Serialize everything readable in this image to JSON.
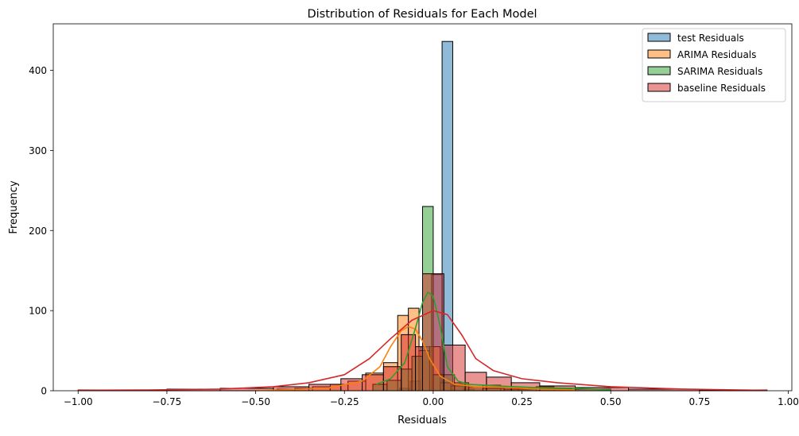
{
  "chart_data": {
    "type": "bar",
    "title": "Distribution of Residuals for Each Model",
    "xlabel": "Residuals",
    "ylabel": "Frequency",
    "xlim": [
      -1.07,
      1.01
    ],
    "ylim": [
      0,
      458
    ],
    "xticks": [
      -1.0,
      -0.75,
      -0.5,
      -0.25,
      0.0,
      0.25,
      0.5,
      0.75,
      1.0
    ],
    "xtick_labels": [
      "−1.00",
      "−0.75",
      "−0.50",
      "−0.25",
      "0.00",
      "0.25",
      "0.50",
      "0.75",
      "1.00"
    ],
    "yticks": [
      0,
      100,
      200,
      300,
      400
    ],
    "ytick_labels": [
      "0",
      "100",
      "200",
      "300",
      "400"
    ],
    "grid": false,
    "legend_position": "top-right",
    "series": [
      {
        "name": "test Residuals",
        "color": "#1f77b4",
        "bins": [
          [
            -0.095,
            -0.065,
            3
          ],
          [
            -0.065,
            -0.035,
            12
          ],
          [
            -0.035,
            -0.005,
            55
          ],
          [
            -0.005,
            0.025,
            145
          ],
          [
            0.025,
            0.055,
            436
          ],
          [
            0.055,
            0.085,
            8
          ],
          [
            0.085,
            0.115,
            2
          ]
        ],
        "kde": null
      },
      {
        "name": "ARIMA Residuals",
        "color": "#ff7f0e",
        "bins": [
          [
            -0.44,
            -0.39,
            2
          ],
          [
            -0.39,
            -0.34,
            3
          ],
          [
            -0.34,
            -0.29,
            5
          ],
          [
            -0.29,
            -0.24,
            8
          ],
          [
            -0.24,
            -0.19,
            12
          ],
          [
            -0.19,
            -0.14,
            22
          ],
          [
            -0.14,
            -0.1,
            35
          ],
          [
            -0.1,
            -0.07,
            94
          ],
          [
            -0.07,
            -0.04,
            103
          ],
          [
            -0.04,
            -0.01,
            50
          ],
          [
            -0.01,
            0.02,
            55
          ],
          [
            0.02,
            0.05,
            10
          ],
          [
            0.05,
            0.09,
            6
          ],
          [
            0.09,
            0.14,
            5
          ],
          [
            0.14,
            0.19,
            7
          ],
          [
            0.19,
            0.24,
            5
          ],
          [
            0.24,
            0.29,
            3
          ],
          [
            0.29,
            0.34,
            5
          ],
          [
            0.34,
            0.39,
            2
          ]
        ],
        "kde": [
          [
            -0.5,
            0
          ],
          [
            -0.3,
            3
          ],
          [
            -0.2,
            12
          ],
          [
            -0.15,
            30
          ],
          [
            -0.12,
            55
          ],
          [
            -0.09,
            75
          ],
          [
            -0.07,
            80
          ],
          [
            -0.05,
            77
          ],
          [
            -0.03,
            62
          ],
          [
            -0.01,
            40
          ],
          [
            0.02,
            18
          ],
          [
            0.06,
            8
          ],
          [
            0.12,
            5
          ],
          [
            0.2,
            4
          ],
          [
            0.3,
            2
          ],
          [
            0.4,
            1
          ]
        ]
      },
      {
        "name": "SARIMA Residuals",
        "color": "#2ca02c",
        "bins": [
          [
            -0.17,
            -0.13,
            8
          ],
          [
            -0.13,
            -0.09,
            13
          ],
          [
            -0.09,
            -0.06,
            27
          ],
          [
            -0.06,
            -0.03,
            43
          ],
          [
            -0.03,
            0.0,
            230
          ],
          [
            0.0,
            0.03,
            20
          ],
          [
            0.03,
            0.06,
            20
          ],
          [
            0.06,
            0.1,
            10
          ],
          [
            0.1,
            0.14,
            5
          ],
          [
            0.14,
            0.2,
            3
          ],
          [
            0.2,
            0.3,
            2
          ],
          [
            0.3,
            0.4,
            3
          ],
          [
            0.4,
            0.5,
            2
          ]
        ],
        "kde": [
          [
            -0.16,
            8
          ],
          [
            -0.12,
            15
          ],
          [
            -0.08,
            35
          ],
          [
            -0.05,
            78
          ],
          [
            -0.03,
            110
          ],
          [
            -0.015,
            123
          ],
          [
            0.0,
            118
          ],
          [
            0.02,
            80
          ],
          [
            0.04,
            30
          ],
          [
            0.07,
            12
          ],
          [
            0.1,
            8
          ],
          [
            0.18,
            6
          ],
          [
            0.28,
            4
          ],
          [
            0.4,
            3
          ],
          [
            0.5,
            1
          ]
        ]
      },
      {
        "name": "baseline Residuals",
        "color": "#d62728",
        "bins": [
          [
            -1.0,
            -0.75,
            1
          ],
          [
            -0.75,
            -0.6,
            2
          ],
          [
            -0.6,
            -0.45,
            3
          ],
          [
            -0.45,
            -0.35,
            5
          ],
          [
            -0.35,
            -0.26,
            8
          ],
          [
            -0.26,
            -0.2,
            15
          ],
          [
            -0.2,
            -0.14,
            20
          ],
          [
            -0.14,
            -0.09,
            30
          ],
          [
            -0.09,
            -0.05,
            70
          ],
          [
            -0.05,
            -0.03,
            55
          ],
          [
            -0.03,
            0.03,
            146
          ],
          [
            0.03,
            0.09,
            57
          ],
          [
            0.09,
            0.15,
            23
          ],
          [
            0.15,
            0.22,
            17
          ],
          [
            0.22,
            0.3,
            10
          ],
          [
            0.3,
            0.4,
            6
          ],
          [
            0.4,
            0.55,
            4
          ],
          [
            0.55,
            0.75,
            2
          ],
          [
            0.75,
            0.94,
            1
          ]
        ],
        "kde": [
          [
            -1.0,
            0.5
          ],
          [
            -0.8,
            1
          ],
          [
            -0.6,
            2
          ],
          [
            -0.45,
            5
          ],
          [
            -0.35,
            10
          ],
          [
            -0.25,
            20
          ],
          [
            -0.18,
            40
          ],
          [
            -0.12,
            65
          ],
          [
            -0.06,
            88
          ],
          [
            0.0,
            100
          ],
          [
            0.04,
            95
          ],
          [
            0.08,
            70
          ],
          [
            0.12,
            40
          ],
          [
            0.17,
            25
          ],
          [
            0.25,
            15
          ],
          [
            0.35,
            10
          ],
          [
            0.5,
            5
          ],
          [
            0.7,
            2
          ],
          [
            0.94,
            0.5
          ]
        ]
      }
    ]
  }
}
